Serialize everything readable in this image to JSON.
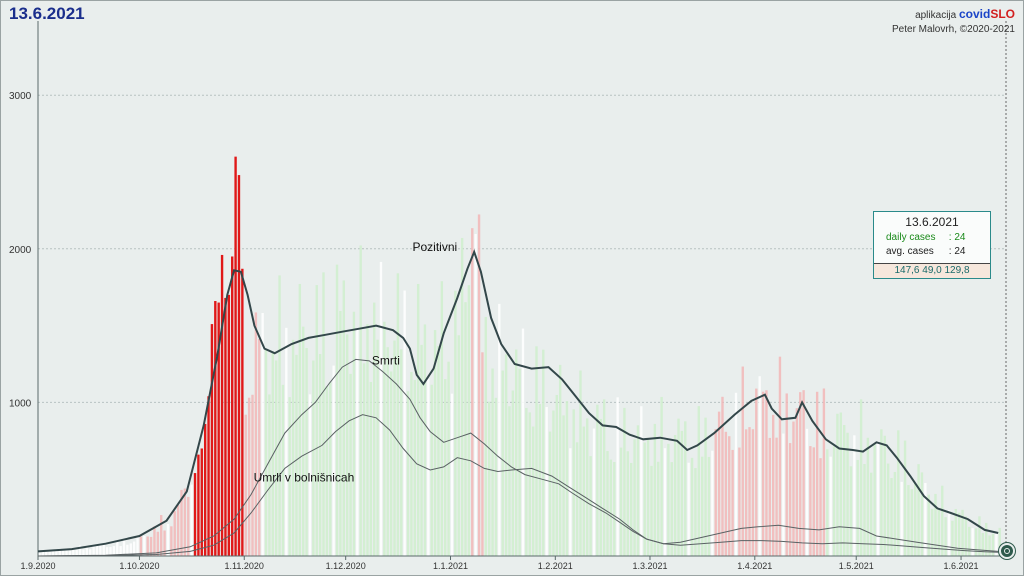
{
  "header": {
    "date": "13.6.2021",
    "app_prefix": "aplikacija",
    "app_brand_a": "covid",
    "app_brand_b": "SLO",
    "author": "Peter Malovrh, ©2020-2021"
  },
  "info_box": {
    "date": "13.6.2021",
    "daily_label": "daily cases",
    "daily_value": ": 24",
    "avg_label": "avg. cases",
    "avg_value": ": 24",
    "footer": "147,6   49,0   129,8"
  },
  "colors": {
    "background": "#e9eeed",
    "axis": "#5a6a6a",
    "grid": "#b8c2c2",
    "positive_line": "#33474a",
    "death_line": "#5a6264",
    "bar_highlight": "#e01818",
    "bar_red_pale": "#f2b6b6",
    "bar_green_pale": "#cfeecd",
    "bar_white": "#ffffff",
    "info_border": "#2a8a8a"
  },
  "chart_data": {
    "type": "bar",
    "y_axis": {
      "ticks": [
        1000,
        2000,
        3000
      ],
      "tick_labels": [
        "1000",
        "2000",
        "3000"
      ],
      "range": [
        0,
        3500
      ]
    },
    "x_axis": {
      "tick_labels": [
        "1.9.2020",
        "1.10.2020",
        "1.11.2020",
        "1.12.2020",
        "1.1.2021",
        "1.2.2021",
        "1.3.2021",
        "1.4.2021",
        "1.5.2021",
        "1.6.2021"
      ],
      "tick_day_index": [
        0,
        30,
        61,
        91,
        122,
        153,
        181,
        212,
        242,
        273
      ],
      "total_days": 286
    },
    "series": [
      {
        "name": "Pozitivni",
        "kind": "line",
        "points": [
          [
            0,
            30
          ],
          [
            10,
            45
          ],
          [
            20,
            80
          ],
          [
            30,
            130
          ],
          [
            38,
            230
          ],
          [
            44,
            420
          ],
          [
            49,
            850
          ],
          [
            53,
            1300
          ],
          [
            56,
            1700
          ],
          [
            58,
            1860
          ],
          [
            60,
            1850
          ],
          [
            62,
            1700
          ],
          [
            64,
            1500
          ],
          [
            67,
            1350
          ],
          [
            70,
            1320
          ],
          [
            75,
            1380
          ],
          [
            80,
            1420
          ],
          [
            85,
            1440
          ],
          [
            90,
            1460
          ],
          [
            95,
            1480
          ],
          [
            100,
            1500
          ],
          [
            105,
            1470
          ],
          [
            108,
            1420
          ],
          [
            110,
            1350
          ],
          [
            112,
            1180
          ],
          [
            114,
            1120
          ],
          [
            117,
            1220
          ],
          [
            120,
            1450
          ],
          [
            124,
            1680
          ],
          [
            127,
            1870
          ],
          [
            129,
            1980
          ],
          [
            131,
            1850
          ],
          [
            134,
            1550
          ],
          [
            137,
            1380
          ],
          [
            141,
            1250
          ],
          [
            146,
            1220
          ],
          [
            151,
            1230
          ],
          [
            155,
            1150
          ],
          [
            159,
            1040
          ],
          [
            163,
            930
          ],
          [
            167,
            850
          ],
          [
            171,
            840
          ],
          [
            175,
            790
          ],
          [
            179,
            760
          ],
          [
            184,
            770
          ],
          [
            189,
            750
          ],
          [
            192,
            690
          ],
          [
            195,
            720
          ],
          [
            200,
            800
          ],
          [
            206,
            920
          ],
          [
            211,
            1010
          ],
          [
            215,
            1050
          ],
          [
            217,
            960
          ],
          [
            220,
            890
          ],
          [
            224,
            900
          ],
          [
            226,
            1000
          ],
          [
            229,
            880
          ],
          [
            233,
            760
          ],
          [
            237,
            700
          ],
          [
            241,
            690
          ],
          [
            244,
            680
          ],
          [
            248,
            740
          ],
          [
            251,
            720
          ],
          [
            254,
            640
          ],
          [
            258,
            520
          ],
          [
            262,
            390
          ],
          [
            266,
            310
          ],
          [
            270,
            280
          ],
          [
            275,
            240
          ],
          [
            280,
            170
          ],
          [
            284,
            150
          ]
        ]
      },
      {
        "name": "Smrti",
        "kind": "line",
        "points": [
          [
            0,
            0
          ],
          [
            20,
            5
          ],
          [
            35,
            20
          ],
          [
            45,
            60
          ],
          [
            52,
            130
          ],
          [
            58,
            240
          ],
          [
            63,
            400
          ],
          [
            68,
            600
          ],
          [
            73,
            800
          ],
          [
            78,
            920
          ],
          [
            82,
            1000
          ],
          [
            86,
            1120
          ],
          [
            90,
            1230
          ],
          [
            94,
            1280
          ],
          [
            98,
            1270
          ],
          [
            102,
            1200
          ],
          [
            106,
            1120
          ],
          [
            110,
            1020
          ],
          [
            113,
            900
          ],
          [
            116,
            810
          ],
          [
            120,
            740
          ],
          [
            124,
            770
          ],
          [
            128,
            800
          ],
          [
            132,
            730
          ],
          [
            136,
            650
          ],
          [
            140,
            580
          ],
          [
            144,
            530
          ],
          [
            149,
            500
          ],
          [
            154,
            470
          ],
          [
            158,
            410
          ],
          [
            163,
            340
          ],
          [
            168,
            280
          ],
          [
            172,
            220
          ],
          [
            176,
            160
          ],
          [
            180,
            110
          ],
          [
            185,
            80
          ],
          [
            190,
            90
          ],
          [
            196,
            120
          ],
          [
            202,
            150
          ],
          [
            208,
            180
          ],
          [
            213,
            190
          ],
          [
            219,
            200
          ],
          [
            225,
            180
          ],
          [
            231,
            170
          ],
          [
            237,
            190
          ],
          [
            243,
            180
          ],
          [
            248,
            130
          ],
          [
            254,
            110
          ],
          [
            260,
            90
          ],
          [
            266,
            70
          ],
          [
            272,
            50
          ],
          [
            278,
            40
          ],
          [
            284,
            30
          ]
        ]
      },
      {
        "name": "Umrli v bolnišnicah",
        "kind": "line",
        "points": [
          [
            0,
            0
          ],
          [
            20,
            3
          ],
          [
            35,
            10
          ],
          [
            45,
            30
          ],
          [
            52,
            70
          ],
          [
            58,
            150
          ],
          [
            63,
            280
          ],
          [
            68,
            430
          ],
          [
            73,
            570
          ],
          [
            78,
            650
          ],
          [
            84,
            720
          ],
          [
            88,
            810
          ],
          [
            92,
            880
          ],
          [
            96,
            920
          ],
          [
            100,
            900
          ],
          [
            104,
            820
          ],
          [
            108,
            700
          ],
          [
            112,
            600
          ],
          [
            116,
            560
          ],
          [
            120,
            580
          ],
          [
            124,
            640
          ],
          [
            128,
            620
          ],
          [
            132,
            570
          ],
          [
            136,
            550
          ],
          [
            140,
            560
          ],
          [
            146,
            570
          ],
          [
            152,
            520
          ],
          [
            157,
            450
          ],
          [
            162,
            380
          ],
          [
            167,
            310
          ],
          [
            172,
            240
          ],
          [
            176,
            170
          ],
          [
            180,
            110
          ],
          [
            185,
            80
          ],
          [
            190,
            70
          ],
          [
            196,
            80
          ],
          [
            202,
            90
          ],
          [
            208,
            100
          ],
          [
            214,
            100
          ],
          [
            220,
            95
          ],
          [
            226,
            85
          ],
          [
            232,
            80
          ],
          [
            238,
            85
          ],
          [
            244,
            80
          ],
          [
            250,
            75
          ],
          [
            256,
            65
          ],
          [
            262,
            55
          ],
          [
            268,
            45
          ],
          [
            274,
            35
          ],
          [
            280,
            28
          ],
          [
            284,
            24
          ]
        ]
      }
    ],
    "bars": {
      "description_values": "daily positive cases",
      "highlight_range": [
        46,
        60
      ],
      "highlight_values": [
        540,
        660,
        700,
        860,
        1040,
        1510,
        1660,
        1650,
        1960,
        1680,
        1700,
        1950,
        2600,
        2480,
        1870
      ],
      "red_pale_ranges": [
        [
          30,
          45
        ],
        [
          61,
          66
        ],
        [
          128,
          131
        ],
        [
          199,
          232
        ]
      ],
      "green_pale_ranges": [
        [
          67,
          127
        ],
        [
          132,
          198
        ],
        [
          233,
          284
        ]
      ],
      "envelope": [
        [
          0,
          40
        ],
        [
          20,
          90
        ],
        [
          30,
          150
        ],
        [
          40,
          350
        ],
        [
          45,
          700
        ],
        [
          61,
          1650
        ],
        [
          64,
          1800
        ],
        [
          70,
          1850
        ],
        [
          80,
          1900
        ],
        [
          90,
          2100
        ],
        [
          97,
          2050
        ],
        [
          105,
          2000
        ],
        [
          115,
          1800
        ],
        [
          122,
          1900
        ],
        [
          126,
          2300
        ],
        [
          128,
          3300
        ],
        [
          131,
          1900
        ],
        [
          135,
          1700
        ],
        [
          145,
          1550
        ],
        [
          155,
          1300
        ],
        [
          165,
          1150
        ],
        [
          175,
          1050
        ],
        [
          185,
          1050
        ],
        [
          195,
          1000
        ],
        [
          205,
          1200
        ],
        [
          212,
          1350
        ],
        [
          220,
          1300
        ],
        [
          228,
          1200
        ],
        [
          235,
          1100
        ],
        [
          245,
          1000
        ],
        [
          255,
          850
        ],
        [
          265,
          500
        ],
        [
          275,
          300
        ],
        [
          284,
          200
        ]
      ]
    },
    "annotations": [
      {
        "text": "Pozitivni",
        "day": 122,
        "value": 1960
      },
      {
        "text": "Smrti",
        "day": 110,
        "value": 1220
      },
      {
        "text": "Umrli v bolnišnicah",
        "day": 75,
        "value": 460
      }
    ],
    "grid": true,
    "legend": "none"
  }
}
